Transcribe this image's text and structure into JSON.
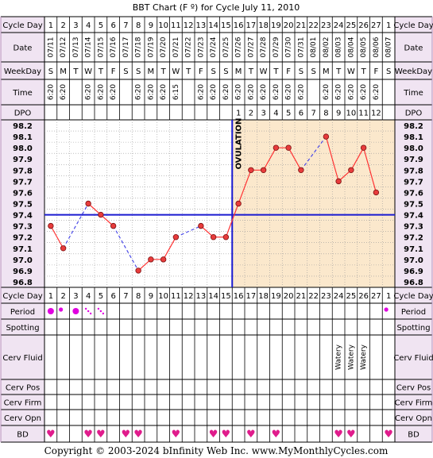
{
  "chart_data": {
    "type": "line",
    "title": "BBT Chart (F º) for Cycle July 11, 2010",
    "row_labels": {
      "cycle_day": "Cycle Day",
      "date": "Date",
      "weekday": "WeekDay",
      "time": "Time",
      "dpo": "DPO",
      "period": "Period",
      "spotting": "Spotting",
      "cerv_fluid": "Cerv Fluid",
      "cerv_pos": "Cerv Pos",
      "cerv_firm": "Cerv Firm",
      "cerv_opn": "Cerv Opn",
      "bd": "BD"
    },
    "cycle_days": [
      "1",
      "2",
      "3",
      "4",
      "5",
      "6",
      "7",
      "8",
      "9",
      "10",
      "11",
      "12",
      "13",
      "14",
      "15",
      "16",
      "17",
      "18",
      "19",
      "20",
      "21",
      "22",
      "23",
      "24",
      "25",
      "26",
      "27",
      "1"
    ],
    "dates": [
      "07/11",
      "07/12",
      "07/13",
      "07/14",
      "07/15",
      "07/16",
      "07/17",
      "07/18",
      "07/19",
      "07/20",
      "07/21",
      "07/22",
      "07/23",
      "07/24",
      "07/25",
      "07/26",
      "07/27",
      "07/28",
      "07/29",
      "07/30",
      "07/31",
      "08/01",
      "08/02",
      "08/03",
      "08/04",
      "08/05",
      "08/06",
      "08/07"
    ],
    "weekdays": [
      "S",
      "M",
      "T",
      "W",
      "T",
      "F",
      "S",
      "S",
      "M",
      "T",
      "W",
      "T",
      "F",
      "S",
      "S",
      "M",
      "T",
      "W",
      "T",
      "F",
      "S",
      "S",
      "M",
      "T",
      "W",
      "T",
      "F",
      "S"
    ],
    "times": [
      "6:20",
      "6:20",
      "",
      "6:20",
      "6:20",
      "6:20",
      "",
      "6:20",
      "6:20",
      "6:20",
      "6:15",
      "",
      "6:20",
      "6:20",
      "6:20",
      "6:20",
      "6:20",
      "6:20",
      "6:20",
      "6:20",
      "6:20",
      "",
      "6:20",
      "6:20",
      "6:20",
      "6:20",
      "6:20",
      ""
    ],
    "dpo": [
      "",
      "",
      "",
      "",
      "",
      "",
      "",
      "",
      "",
      "",
      "",
      "",
      "",
      "",
      "",
      "1",
      "2",
      "3",
      "4",
      "5",
      "6",
      "7",
      "8",
      "9",
      "10",
      "11",
      "12",
      ""
    ],
    "temp_ticks": [
      "98.2",
      "98.1",
      "98.0",
      "97.9",
      "97.8",
      "97.7",
      "97.6",
      "97.5",
      "97.4",
      "97.3",
      "97.2",
      "97.1",
      "97.0",
      "96.9",
      "96.8"
    ],
    "ylim": [
      96.8,
      98.2
    ],
    "temperatures": [
      97.3,
      97.1,
      null,
      97.5,
      97.4,
      97.3,
      null,
      96.9,
      97.0,
      97.0,
      97.2,
      null,
      97.3,
      97.2,
      97.2,
      97.5,
      97.8,
      97.8,
      98.0,
      98.0,
      97.8,
      null,
      98.1,
      97.7,
      97.8,
      98.0,
      97.6,
      null
    ],
    "coverline": 97.4,
    "ovulation_day": 15,
    "ovulation_label": "OVULATION",
    "period": [
      "heavy",
      "medium",
      "heavy",
      "light",
      "light",
      "",
      "",
      "",
      "",
      "",
      "",
      "",
      "",
      "",
      "",
      "",
      "",
      "",
      "",
      "",
      "",
      "",
      "",
      "",
      "",
      "",
      "",
      "medium"
    ],
    "cerv_fluid": [
      "",
      "",
      "",
      "",
      "",
      "",
      "",
      "",
      "",
      "",
      "",
      "",
      "",
      "",
      "",
      "",
      "",
      "",
      "",
      "",
      "",
      "",
      "",
      "Watery",
      "Watery",
      "Watery",
      "",
      ""
    ],
    "bd": [
      true,
      false,
      false,
      true,
      true,
      false,
      true,
      true,
      false,
      false,
      true,
      false,
      false,
      true,
      true,
      false,
      true,
      false,
      true,
      false,
      false,
      false,
      false,
      true,
      true,
      false,
      false,
      true
    ],
    "bd_symbol": "♥",
    "colors": {
      "grid_bg_post": "#fbe8cc",
      "line": "#ff3333",
      "point": "#e83c3c",
      "missing_link": "#4a4ae8",
      "coverline": "#1a1ad0",
      "ovulation": "#1a1ad0",
      "period": "#e000e0",
      "bd": "#e01c8c",
      "label_bg": "#f0e4f2",
      "border": "#b58ab8"
    }
  },
  "footer": "Copyright © 2003-2024 bInfinity Web Inc.    www.MyMonthlyCycles.com"
}
